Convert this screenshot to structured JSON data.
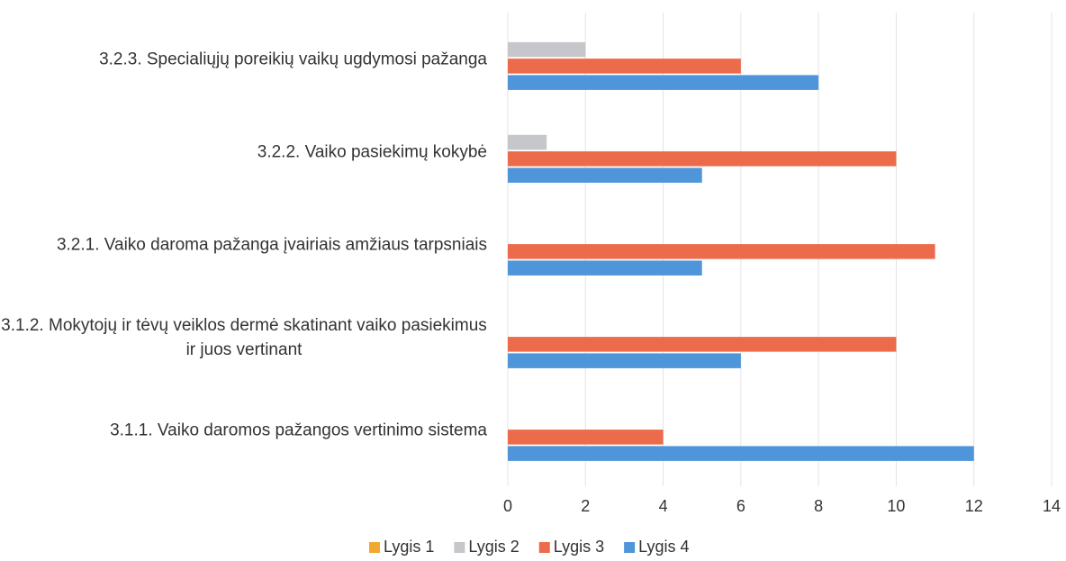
{
  "chart_data": {
    "type": "barh",
    "categories": [
      "3.2.3. Specialiųjų poreikių  vaikų ugdymosi pažanga",
      "3.2.2. Vaiko pasiekimų kokybė",
      "3.2.1. Vaiko daroma pažanga įvairiais amžiaus tarpsniais",
      "3.1.2. Mokytojų ir tėvų veiklos dermė skatinant vaiko pasiekimus ir juos vertinant",
      "3.1.1. Vaiko daromos pažangos vertinimo sistema"
    ],
    "series": [
      {
        "name": "Lygis 1",
        "color": "#f0a830",
        "values": [
          0,
          0,
          0,
          0,
          0
        ]
      },
      {
        "name": "Lygis 2",
        "color": "#c6c7ca",
        "values": [
          2,
          1,
          0,
          0,
          0
        ]
      },
      {
        "name": "Lygis 3",
        "color": "#ec6b4b",
        "values": [
          6,
          10,
          11,
          10,
          4
        ]
      },
      {
        "name": "Lygis 4",
        "color": "#4f95d9",
        "values": [
          8,
          5,
          5,
          6,
          12
        ]
      }
    ],
    "xlim": [
      0,
      14
    ],
    "xticks": [
      0,
      2,
      4,
      6,
      8,
      10,
      12,
      14
    ],
    "grid": true,
    "legend": "bottom"
  }
}
